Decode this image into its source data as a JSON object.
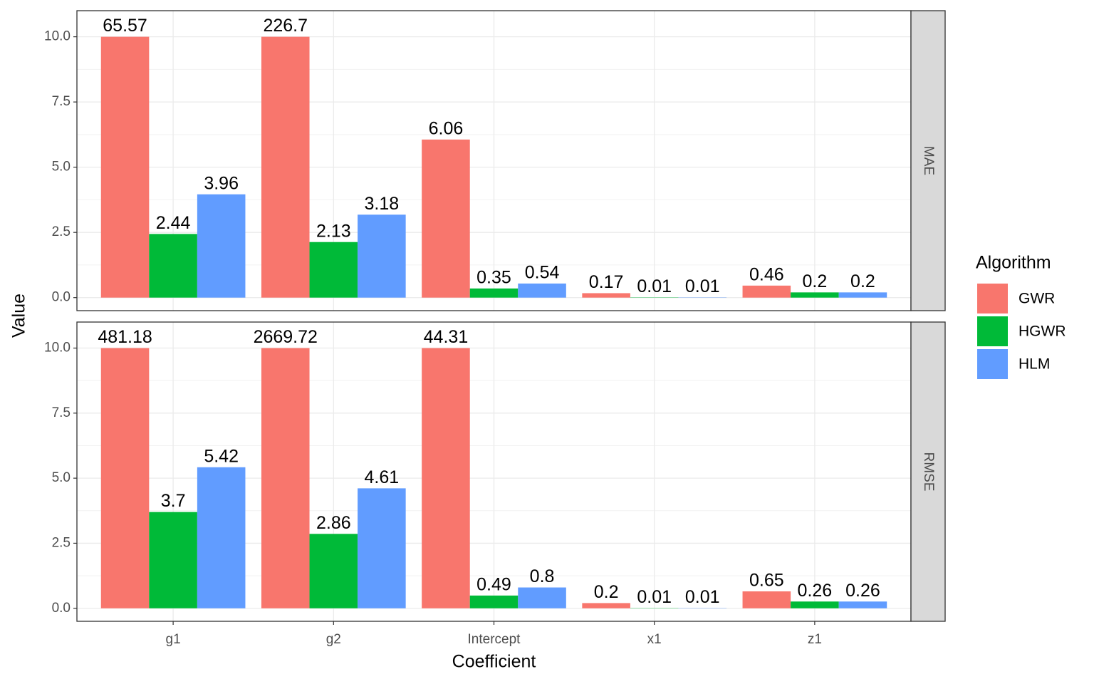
{
  "chart_data": {
    "type": "bar",
    "x_label": "Coefficient",
    "y_label": "Value",
    "legend_title": "Algorithm",
    "categories": [
      "g1",
      "g2",
      "Intercept",
      "x1",
      "z1"
    ],
    "ylim": [
      -0.5,
      11
    ],
    "out_of_bounds": "squish",
    "yticks": [
      {
        "value": 0,
        "label": "0.0"
      },
      {
        "value": 2.5,
        "label": "2.5"
      },
      {
        "value": 5,
        "label": "5.0"
      },
      {
        "value": 7.5,
        "label": "7.5"
      },
      {
        "value": 10,
        "label": "10.0"
      }
    ],
    "grid": true,
    "facets": [
      {
        "strip": "MAE",
        "series": [
          {
            "name": "GWR",
            "color": "#f8766d",
            "values": [
              65.57,
              226.7,
              6.06,
              0.17,
              0.46
            ]
          },
          {
            "name": "HGWR",
            "color": "#00ba38",
            "values": [
              2.44,
              2.13,
              0.35,
              0.01,
              0.2
            ]
          },
          {
            "name": "HLM",
            "color": "#619cff",
            "values": [
              3.96,
              3.18,
              0.54,
              0.01,
              0.2
            ]
          }
        ]
      },
      {
        "strip": "RMSE",
        "series": [
          {
            "name": "GWR",
            "color": "#f8766d",
            "values": [
              481.18,
              2669.72,
              44.31,
              0.2,
              0.65
            ]
          },
          {
            "name": "HGWR",
            "color": "#00ba38",
            "values": [
              3.7,
              2.86,
              0.49,
              0.01,
              0.26
            ]
          },
          {
            "name": "HLM",
            "color": "#619cff",
            "values": [
              5.42,
              4.61,
              0.8,
              0.01,
              0.26
            ]
          }
        ]
      }
    ]
  }
}
